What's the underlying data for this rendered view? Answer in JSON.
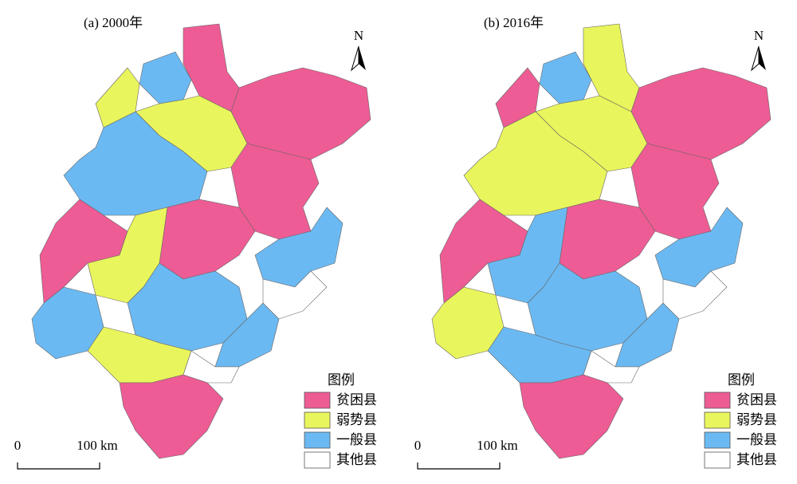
{
  "panels": [
    {
      "title": "(a) 2000年",
      "north": "N",
      "scale_start": "0",
      "scale_end": "100 km",
      "legend": {
        "title": "图例",
        "items": [
          {
            "label": "贫困县",
            "color": "#ee5c95"
          },
          {
            "label": "弱势县",
            "color": "#e9f55c"
          },
          {
            "label": "一般县",
            "color": "#6bb9f2"
          },
          {
            "label": "其他县",
            "color": "#ffffff"
          }
        ]
      }
    },
    {
      "title": "(b) 2016年",
      "north": "N",
      "scale_start": "0",
      "scale_end": "100 km",
      "legend": {
        "title": "图例",
        "items": [
          {
            "label": "贫困县",
            "color": "#ee5c95"
          },
          {
            "label": "弱势县",
            "color": "#e9f55c"
          },
          {
            "label": "一般县",
            "color": "#6bb9f2"
          },
          {
            "label": "其他县",
            "color": "#ffffff"
          }
        ]
      }
    }
  ]
}
